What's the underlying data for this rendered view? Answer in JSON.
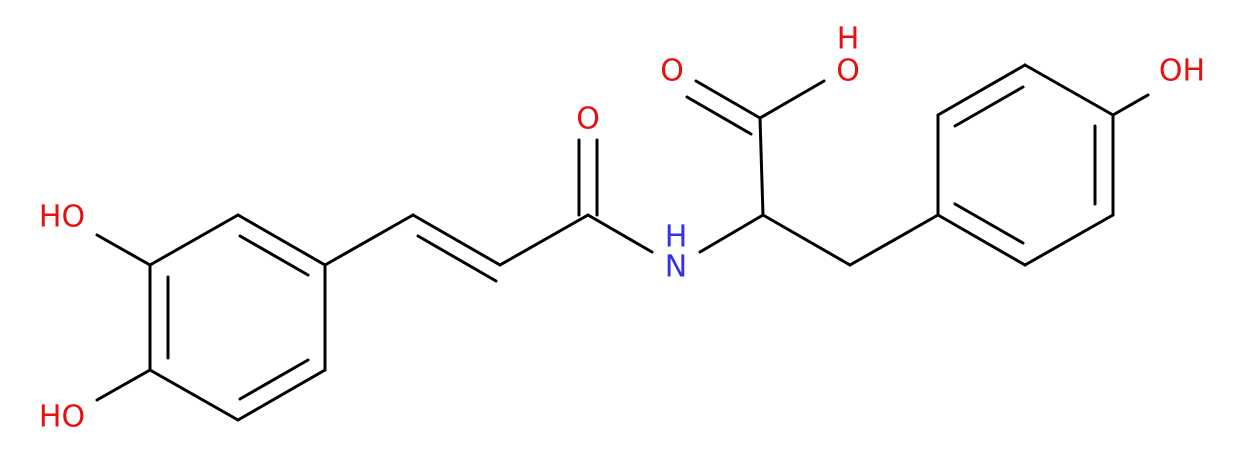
{
  "atom_labels": [
    "HO",
    "HO",
    "O",
    "N",
    "H",
    "O",
    "O",
    "H",
    "OH"
  ]
}
